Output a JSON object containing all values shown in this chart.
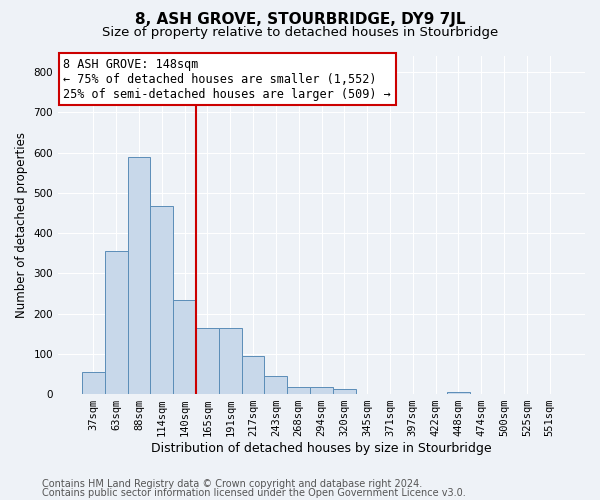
{
  "title": "8, ASH GROVE, STOURBRIDGE, DY9 7JL",
  "subtitle": "Size of property relative to detached houses in Stourbridge",
  "xlabel": "Distribution of detached houses by size in Stourbridge",
  "ylabel": "Number of detached properties",
  "categories": [
    "37sqm",
    "63sqm",
    "88sqm",
    "114sqm",
    "140sqm",
    "165sqm",
    "191sqm",
    "217sqm",
    "243sqm",
    "268sqm",
    "294sqm",
    "320sqm",
    "345sqm",
    "371sqm",
    "397sqm",
    "422sqm",
    "448sqm",
    "474sqm",
    "500sqm",
    "525sqm",
    "551sqm"
  ],
  "values": [
    55,
    355,
    588,
    467,
    235,
    163,
    163,
    94,
    44,
    18,
    18,
    12,
    0,
    0,
    0,
    0,
    5,
    0,
    0,
    0,
    0
  ],
  "bar_color": "#c8d8ea",
  "bar_edge_color": "#5b8db8",
  "vline_x_index": 4.5,
  "vline_color": "#cc0000",
  "annotation_line1": "8 ASH GROVE: 148sqm",
  "annotation_line2": "← 75% of detached houses are smaller (1,552)",
  "annotation_line3": "25% of semi-detached houses are larger (509) →",
  "annotation_box_facecolor": "#ffffff",
  "annotation_box_edgecolor": "#cc0000",
  "ylim": [
    0,
    840
  ],
  "yticks": [
    0,
    100,
    200,
    300,
    400,
    500,
    600,
    700,
    800
  ],
  "footer1": "Contains HM Land Registry data © Crown copyright and database right 2024.",
  "footer2": "Contains public sector information licensed under the Open Government Licence v3.0.",
  "bg_color": "#eef2f7",
  "grid_color": "#ffffff",
  "title_fontsize": 11,
  "subtitle_fontsize": 9.5,
  "ylabel_fontsize": 8.5,
  "xlabel_fontsize": 9,
  "tick_fontsize": 7.5,
  "footer_fontsize": 7,
  "annot_fontsize": 8.5
}
